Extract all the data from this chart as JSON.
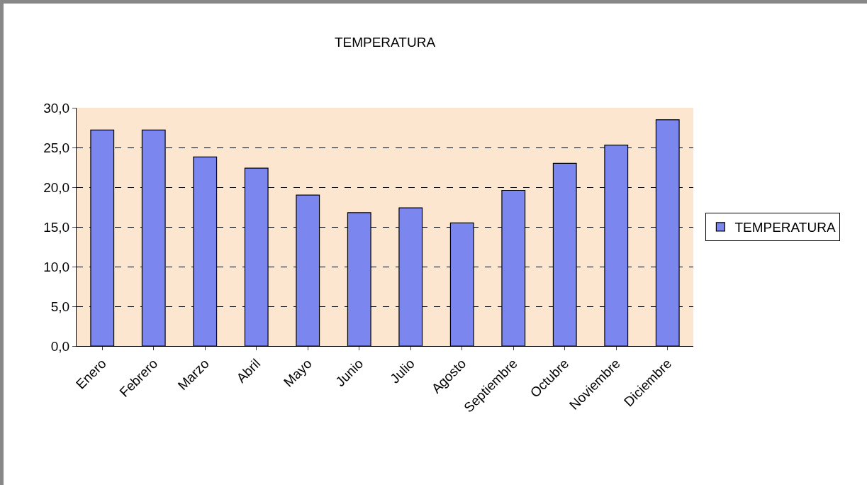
{
  "chart_data": {
    "type": "bar",
    "title": "TEMPERATURA",
    "categories": [
      "Enero",
      "Febrero",
      "Marzo",
      "Abril",
      "Mayo",
      "Junio",
      "Julio",
      "Agosto",
      "Septiembre",
      "Octubre",
      "Noviembre",
      "Diciembre"
    ],
    "series": [
      {
        "name": "TEMPERATURA",
        "color": "#7b87ee",
        "values": [
          27.2,
          27.2,
          23.8,
          22.4,
          19.0,
          16.8,
          17.4,
          15.5,
          19.6,
          23.0,
          25.3,
          28.5
        ]
      }
    ],
    "ylim": [
      0,
      30
    ],
    "yticks": [
      {
        "value": 0,
        "label": "0,0"
      },
      {
        "value": 5,
        "label": "5,0"
      },
      {
        "value": 10,
        "label": "10,0"
      },
      {
        "value": 15,
        "label": "15,0"
      },
      {
        "value": 20,
        "label": "20,0"
      },
      {
        "value": 25,
        "label": "25,0"
      },
      {
        "value": 30,
        "label": "30,0"
      }
    ],
    "grid": "y",
    "legend": "right"
  }
}
